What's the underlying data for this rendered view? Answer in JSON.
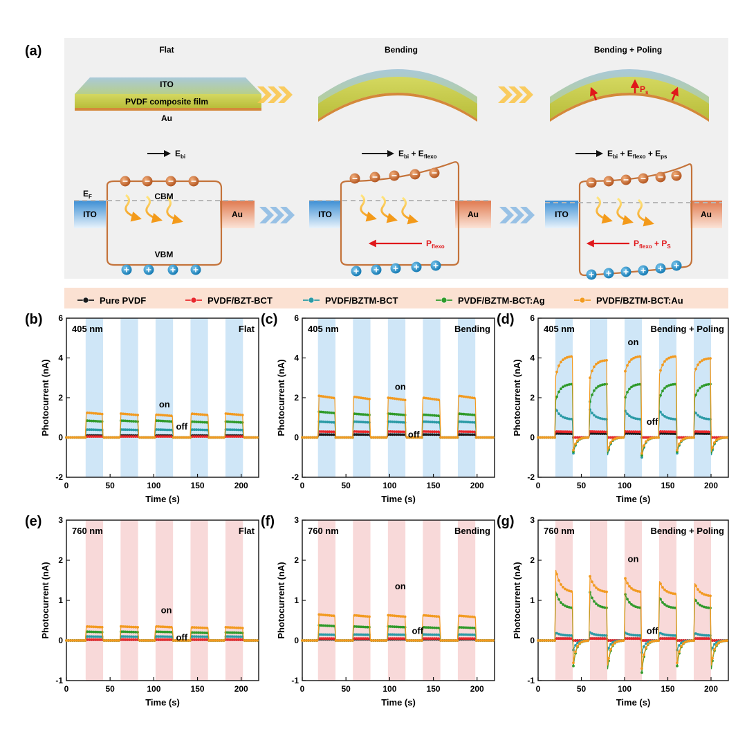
{
  "panel_a": {
    "label": "(a)",
    "stage_titles": [
      "Flat",
      "Bending",
      "Bending + Poling"
    ],
    "film_layers": {
      "top": "ITO",
      "middle": "PVDF composite film",
      "bottom": "Au"
    },
    "ps_label": "P",
    "ps_sub": "s",
    "ebi_label": "E",
    "ebi_sub": "bi",
    "eflexo_text": " + E",
    "eflexo_sub": "flexo",
    "eps_sub": "ps",
    "ef_label": "E",
    "ef_sub": "F",
    "cbm": "CBM",
    "vbm": "VBM",
    "ito": "ITO",
    "au": "Au",
    "pflexo_label": "P",
    "pflexo_sub": "flexo",
    "ps_plus": " + P",
    "ps_plus_sub": "S",
    "colors": {
      "ito": "#5aa8de",
      "au": "#e8865a",
      "band": "#c4733a",
      "electron": "#c8652c",
      "hole": "#1f8fc9",
      "chevron_top": "#f9c74f",
      "chevron_bottom": "#8ebbe3",
      "arrow_red": "#e0181b"
    }
  },
  "legend": {
    "items": [
      {
        "label": "Pure PVDF",
        "color": "#1a1a1a"
      },
      {
        "label": "PVDF/BZT-BCT",
        "color": "#e8282c"
      },
      {
        "label": "PVDF/BZTM-BCT",
        "color": "#2a9aa5"
      },
      {
        "label": "PVDF/BZTM-BCT:Ag",
        "color": "#2f9a2a"
      },
      {
        "label": "PVDF/BZTM-BCT:Au",
        "color": "#f29a20"
      }
    ]
  },
  "chart_data": [
    {
      "panel": "(b)",
      "type": "line",
      "wavelength": "405 nm",
      "condition": "Flat",
      "xlabel": "Time (s)",
      "ylabel": "Photocurrent (nA)",
      "xlim": [
        0,
        220
      ],
      "ylim": [
        -2,
        6
      ],
      "xticks": [
        0,
        50,
        100,
        150,
        200
      ],
      "yticks": [
        -2,
        0,
        2,
        4,
        6
      ],
      "on_windows": [
        [
          22,
          42
        ],
        [
          62,
          82
        ],
        [
          102,
          122
        ],
        [
          142,
          162
        ],
        [
          182,
          202
        ]
      ],
      "band_color": "#cfe6f7",
      "on_label": "on",
      "off_label": "off",
      "series": [
        {
          "name": "Pure PVDF",
          "color": "#1a1a1a",
          "on_values": [
            0.1,
            0.1,
            0.1,
            0.1,
            0.1
          ],
          "shape": "flat"
        },
        {
          "name": "PVDF/BZT-BCT",
          "color": "#e8282c",
          "on_values": [
            0.05,
            0.05,
            0.05,
            0.05,
            0.05
          ],
          "shape": "flat"
        },
        {
          "name": "PVDF/BZTM-BCT",
          "color": "#2a9aa5",
          "on_values": [
            0.4,
            0.4,
            0.4,
            0.4,
            0.4
          ],
          "shape": "flat"
        },
        {
          "name": "PVDF/BZTM-BCT:Ag",
          "color": "#2f9a2a",
          "on_values": [
            0.85,
            0.85,
            0.85,
            0.8,
            0.8
          ],
          "shape": "flat"
        },
        {
          "name": "PVDF/BZTM-BCT:Au",
          "color": "#f29a20",
          "on_values": [
            1.25,
            1.2,
            1.15,
            1.2,
            1.2
          ],
          "shape": "flat"
        }
      ]
    },
    {
      "panel": "(c)",
      "type": "line",
      "wavelength": "405 nm",
      "condition": "Bending",
      "xlabel": "Time (s)",
      "ylabel": "Photocurrent (nA)",
      "xlim": [
        0,
        220
      ],
      "ylim": [
        -2,
        6
      ],
      "xticks": [
        0,
        50,
        100,
        150,
        200
      ],
      "yticks": [
        -2,
        0,
        2,
        4,
        6
      ],
      "on_windows": [
        [
          18,
          38
        ],
        [
          58,
          78
        ],
        [
          98,
          118
        ],
        [
          138,
          158
        ],
        [
          178,
          198
        ]
      ],
      "band_color": "#cfe6f7",
      "on_label": "on",
      "off_label": "off",
      "series": [
        {
          "name": "Pure PVDF",
          "color": "#1a1a1a",
          "on_values": [
            0.15,
            0.15,
            0.15,
            0.15,
            0.15
          ],
          "shape": "flat"
        },
        {
          "name": "PVDF/BZT-BCT",
          "color": "#e8282c",
          "on_values": [
            0.3,
            0.3,
            0.3,
            0.3,
            0.3
          ],
          "shape": "flat"
        },
        {
          "name": "PVDF/BZTM-BCT",
          "color": "#2a9aa5",
          "on_values": [
            0.8,
            0.8,
            0.8,
            0.8,
            0.8
          ],
          "shape": "flat"
        },
        {
          "name": "PVDF/BZTM-BCT:Ag",
          "color": "#2f9a2a",
          "on_values": [
            1.3,
            1.2,
            1.2,
            1.15,
            1.2
          ],
          "shape": "flat"
        },
        {
          "name": "PVDF/BZTM-BCT:Au",
          "color": "#f29a20",
          "on_values": [
            2.1,
            2.05,
            2.0,
            2.0,
            2.1
          ],
          "shape": "flat"
        }
      ]
    },
    {
      "panel": "(d)",
      "type": "line",
      "wavelength": "405 nm",
      "condition": "Bending + Poling",
      "xlabel": "Time (s)",
      "ylabel": "Photocurrent (nA)",
      "xlim": [
        0,
        220
      ],
      "ylim": [
        -2,
        6
      ],
      "xticks": [
        0,
        50,
        100,
        150,
        200
      ],
      "yticks": [
        -2,
        0,
        2,
        4,
        6
      ],
      "on_windows": [
        [
          20,
          40
        ],
        [
          60,
          80
        ],
        [
          100,
          120
        ],
        [
          140,
          160
        ],
        [
          180,
          200
        ]
      ],
      "band_color": "#cfe6f7",
      "on_label": "on",
      "off_label": "off",
      "series": [
        {
          "name": "Pure PVDF",
          "color": "#1a1a1a",
          "on_values": [
            0.2,
            0.2,
            0.2,
            0.2,
            0.2
          ],
          "shape": "flat"
        },
        {
          "name": "PVDF/BZT-BCT",
          "color": "#e8282c",
          "on_values": [
            0.3,
            0.3,
            0.3,
            0.3,
            0.3
          ],
          "shape": "flat"
        },
        {
          "name": "PVDF/BZTM-BCT",
          "color": "#2a9aa5",
          "on_values": [
            1.5,
            1.4,
            1.4,
            1.4,
            1.4
          ],
          "shape": "decay",
          "end_values": [
            0.9,
            0.9,
            0.9,
            0.9,
            0.9
          ],
          "off_dip": -1.0
        },
        {
          "name": "PVDF/BZTM-BCT:Ag",
          "color": "#2f9a2a",
          "on_values": [
            1.8,
            1.8,
            1.9,
            1.9,
            1.8
          ],
          "shape": "rise",
          "end_values": [
            2.7,
            2.7,
            2.7,
            2.7,
            2.7
          ],
          "off_dip": -0.9
        },
        {
          "name": "PVDF/BZTM-BCT:Au",
          "color": "#f29a20",
          "on_values": [
            3.0,
            3.0,
            3.2,
            3.1,
            3.1
          ],
          "shape": "rise",
          "end_values": [
            4.1,
            3.9,
            4.1,
            4.1,
            4.0
          ],
          "off_dip": -0.8
        }
      ]
    },
    {
      "panel": "(e)",
      "type": "line",
      "wavelength": "760 nm",
      "condition": "Flat",
      "xlabel": "Time (s)",
      "ylabel": "Photocurrent (nA)",
      "xlim": [
        0,
        220
      ],
      "ylim": [
        -1,
        3
      ],
      "xticks": [
        0,
        50,
        100,
        150,
        200
      ],
      "yticks": [
        -1,
        0,
        1,
        2,
        3
      ],
      "on_windows": [
        [
          22,
          42
        ],
        [
          62,
          82
        ],
        [
          102,
          122
        ],
        [
          142,
          162
        ],
        [
          182,
          202
        ]
      ],
      "band_color": "#f8d9d9",
      "on_label": "on",
      "off_label": "off",
      "series": [
        {
          "name": "Pure PVDF",
          "color": "#1a1a1a",
          "on_values": [
            0.02,
            0.02,
            0.02,
            0.02,
            0.02
          ],
          "shape": "flat"
        },
        {
          "name": "PVDF/BZT-BCT",
          "color": "#e8282c",
          "on_values": [
            0.02,
            0.02,
            0.02,
            0.02,
            0.02
          ],
          "shape": "flat"
        },
        {
          "name": "PVDF/BZTM-BCT",
          "color": "#2a9aa5",
          "on_values": [
            0.1,
            0.1,
            0.1,
            0.1,
            0.1
          ],
          "shape": "flat"
        },
        {
          "name": "PVDF/BZTM-BCT:Ag",
          "color": "#2f9a2a",
          "on_values": [
            0.22,
            0.22,
            0.22,
            0.2,
            0.2
          ],
          "shape": "flat"
        },
        {
          "name": "PVDF/BZTM-BCT:Au",
          "color": "#f29a20",
          "on_values": [
            0.35,
            0.35,
            0.35,
            0.33,
            0.33
          ],
          "shape": "flat"
        }
      ]
    },
    {
      "panel": "(f)",
      "type": "line",
      "wavelength": "760 nm",
      "condition": "Bending",
      "xlabel": "Time (s)",
      "ylabel": "Photocurrent (nA)",
      "xlim": [
        0,
        220
      ],
      "ylim": [
        -1,
        3
      ],
      "xticks": [
        0,
        50,
        100,
        150,
        200
      ],
      "yticks": [
        -1,
        0,
        1,
        2,
        3
      ],
      "on_windows": [
        [
          18,
          38
        ],
        [
          58,
          78
        ],
        [
          98,
          118
        ],
        [
          138,
          158
        ],
        [
          178,
          198
        ]
      ],
      "band_color": "#f8d9d9",
      "on_label": "on",
      "off_label": "off",
      "series": [
        {
          "name": "Pure PVDF",
          "color": "#1a1a1a",
          "on_values": [
            0.03,
            0.03,
            0.03,
            0.03,
            0.03
          ],
          "shape": "flat"
        },
        {
          "name": "PVDF/BZT-BCT",
          "color": "#e8282c",
          "on_values": [
            0.05,
            0.05,
            0.05,
            0.05,
            0.05
          ],
          "shape": "flat"
        },
        {
          "name": "PVDF/BZTM-BCT",
          "color": "#2a9aa5",
          "on_values": [
            0.15,
            0.15,
            0.15,
            0.15,
            0.15
          ],
          "shape": "flat"
        },
        {
          "name": "PVDF/BZTM-BCT:Ag",
          "color": "#2f9a2a",
          "on_values": [
            0.38,
            0.35,
            0.35,
            0.33,
            0.33
          ],
          "shape": "flat"
        },
        {
          "name": "PVDF/BZTM-BCT:Au",
          "color": "#f29a20",
          "on_values": [
            0.65,
            0.63,
            0.63,
            0.63,
            0.62
          ],
          "shape": "flat"
        }
      ]
    },
    {
      "panel": "(g)",
      "type": "line",
      "wavelength": "760 nm",
      "condition": "Bending + Poling",
      "xlabel": "Time (s)",
      "ylabel": "Photocurrent (nA)",
      "xlim": [
        0,
        220
      ],
      "ylim": [
        -1,
        3
      ],
      "xticks": [
        0,
        50,
        100,
        150,
        200
      ],
      "yticks": [
        -1,
        0,
        1,
        2,
        3
      ],
      "on_windows": [
        [
          20,
          40
        ],
        [
          60,
          80
        ],
        [
          100,
          120
        ],
        [
          140,
          160
        ],
        [
          180,
          200
        ]
      ],
      "band_color": "#f8d9d9",
      "on_label": "on",
      "off_label": "off",
      "series": [
        {
          "name": "Pure PVDF",
          "color": "#1a1a1a",
          "on_values": [
            0.05,
            0.05,
            0.05,
            0.05,
            0.05
          ],
          "shape": "flat"
        },
        {
          "name": "PVDF/BZT-BCT",
          "color": "#e8282c",
          "on_values": [
            0.05,
            0.05,
            0.05,
            0.05,
            0.05
          ],
          "shape": "flat"
        },
        {
          "name": "PVDF/BZTM-BCT",
          "color": "#2a9aa5",
          "on_values": [
            0.2,
            0.2,
            0.2,
            0.2,
            0.2
          ],
          "shape": "decay",
          "end_values": [
            0.12,
            0.12,
            0.12,
            0.12,
            0.12
          ],
          "off_dip": -0.3
        },
        {
          "name": "PVDF/BZTM-BCT:Ag",
          "color": "#2f9a2a",
          "on_values": [
            1.25,
            1.2,
            1.2,
            1.1,
            1.1
          ],
          "shape": "decay",
          "end_values": [
            0.8,
            0.8,
            0.8,
            0.8,
            0.8
          ],
          "off_dip": -0.8
        },
        {
          "name": "PVDF/BZTM-BCT:Au",
          "color": "#f29a20",
          "on_values": [
            1.8,
            1.6,
            1.6,
            1.5,
            1.5
          ],
          "shape": "decay",
          "end_values": [
            1.2,
            1.2,
            1.2,
            1.15,
            1.1
          ],
          "off_dip": -0.7
        }
      ]
    }
  ]
}
